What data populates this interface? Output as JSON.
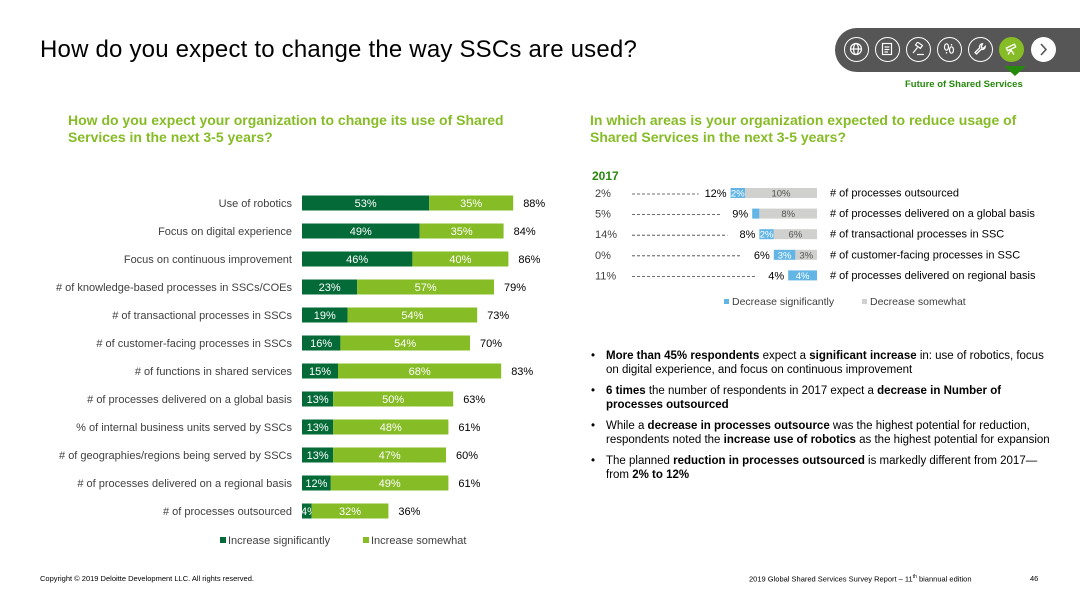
{
  "title": "How do you expect to change the way SSCs are used?",
  "nav": {
    "section_label": "Future of Shared Services",
    "icons": [
      "globe-icon",
      "document-icon",
      "gavel-icon",
      "footprints-icon",
      "wrench-icon",
      "telescope-icon"
    ],
    "active_icon": "telescope-icon",
    "next_icon": "chevron-right-icon",
    "colors": {
      "pill": "#565656",
      "active": "#86bc25",
      "marker": "#26890d"
    }
  },
  "left": {
    "heading": "How do you expect your organization to change its use of Shared Services in the next 3-5 years?"
  },
  "right": {
    "heading": "In which areas is your organization expected to reduce usage of Shared Services in the next 3-5 years?"
  },
  "chart_data": [
    {
      "type": "bar",
      "orientation": "horizontal",
      "stacked": true,
      "categories": [
        "Use of robotics",
        "Focus on digital experience",
        "Focus on continuous improvement",
        "# of knowledge-based processes in SSCs/COEs",
        "# of transactional processes in SSCs",
        "# of customer-facing processes in SSCs",
        "# of functions in shared services",
        "# of processes delivered on a global basis",
        "% of internal business units served by SSCs",
        "# of geographies/regions being served by SSCs",
        "# of processes delivered on a regional basis",
        "# of processes outsourced"
      ],
      "series": [
        {
          "name": "Increase significantly",
          "color": "#046a38",
          "values": [
            53,
            49,
            46,
            23,
            19,
            16,
            15,
            13,
            13,
            13,
            12,
            4
          ]
        },
        {
          "name": "Increase somewhat",
          "color": "#86bc25",
          "values": [
            35,
            35,
            40,
            57,
            54,
            54,
            68,
            50,
            48,
            47,
            49,
            32
          ]
        }
      ],
      "totals": [
        88,
        84,
        86,
        79,
        73,
        70,
        83,
        63,
        61,
        60,
        61,
        36
      ],
      "legend": "bottom"
    },
    {
      "type": "bar",
      "orientation": "horizontal",
      "stacked": true,
      "year_label": "2017",
      "categories": [
        "# of processes outsourced",
        "# of processes delivered on a global basis",
        "# of transactional processes in SSC",
        "# of customer-facing processes in SSC",
        "# of processes delivered on regional basis"
      ],
      "values_2017": [
        "2%",
        "5%",
        "14%",
        "0%",
        "11%"
      ],
      "totals": [
        "12%",
        "9%",
        "8%",
        "6%",
        "4%"
      ],
      "series": [
        {
          "name": "Decrease significantly",
          "color": "#62b5e5",
          "values": [
            2,
            1,
            2,
            3,
            4
          ],
          "labels": [
            "2%",
            "",
            "2%",
            "3%",
            "4%"
          ]
        },
        {
          "name": "Decrease somewhat",
          "color": "#d0d0ce",
          "values": [
            10,
            8,
            6,
            3,
            0
          ],
          "labels": [
            "10%",
            "8%",
            "6%",
            "3%",
            ""
          ]
        }
      ],
      "legend": "bottom"
    }
  ],
  "bullets": [
    [
      {
        "t": "More than 45% respondents",
        "b": true
      },
      {
        "t": " expect a ",
        "b": false
      },
      {
        "t": "significant increase",
        "b": true
      },
      {
        "t": " in: use of robotics, focus on digital experience, and focus on continuous improvement",
        "b": false
      }
    ],
    [
      {
        "t": "6 times",
        "b": true
      },
      {
        "t": " the number of respondents in 2017 expect a ",
        "b": false
      },
      {
        "t": "decrease in Number of processes outsourced",
        "b": true
      }
    ],
    [
      {
        "t": "While a ",
        "b": false
      },
      {
        "t": "decrease in processes outsource",
        "b": true
      },
      {
        "t": " was the highest potential for reduction, respondents noted the ",
        "b": false
      },
      {
        "t": "increase use of robotics",
        "b": true
      },
      {
        "t": " as the highest potential for expansion",
        "b": false
      }
    ],
    [
      {
        "t": "The planned ",
        "b": false
      },
      {
        "t": "reduction in processes outsourced",
        "b": true
      },
      {
        "t": " is markedly different from 2017—from ",
        "b": false
      },
      {
        "t": "2% to 12%",
        "b": true
      }
    ]
  ],
  "footer": {
    "copyright": "Copyright © 2019 Deloitte Development LLC. All rights reserved.",
    "report_prefix": "2019 Global Shared Services Survey Report – 11",
    "report_sup": "th",
    "report_suffix": " biannual edition",
    "page": "46"
  }
}
